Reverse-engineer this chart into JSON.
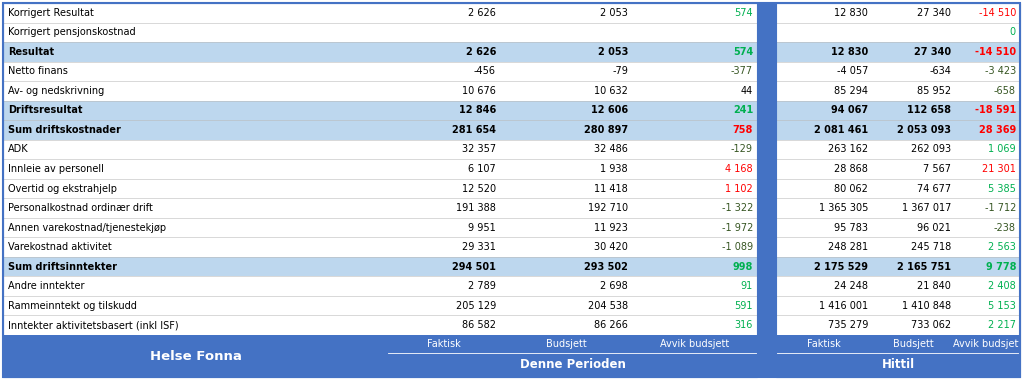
{
  "title_left": "Helse Fonna",
  "title_denne": "Denne Perioden",
  "title_hittil": "Hittil",
  "rows": [
    {
      "label": "Inntekter aktivitetsbasert (inkl ISF)",
      "bold": false,
      "highlight": false,
      "dp_f": "86 582",
      "dp_b": "86 266",
      "dp_a": "316",
      "dp_a_color": "green",
      "h_f": "735 279",
      "h_b": "733 062",
      "h_a": "2 217",
      "h_a_color": "green"
    },
    {
      "label": "Rammeinntekt og tilskudd",
      "bold": false,
      "highlight": false,
      "dp_f": "205 129",
      "dp_b": "204 538",
      "dp_a": "591",
      "dp_a_color": "green",
      "h_f": "1 416 001",
      "h_b": "1 410 848",
      "h_a": "5 153",
      "h_a_color": "green"
    },
    {
      "label": "Andre inntekter",
      "bold": false,
      "highlight": false,
      "dp_f": "2 789",
      "dp_b": "2 698",
      "dp_a": "91",
      "dp_a_color": "green",
      "h_f": "24 248",
      "h_b": "21 840",
      "h_a": "2 408",
      "h_a_color": "green"
    },
    {
      "label": "Sum driftsinntekter",
      "bold": true,
      "highlight": true,
      "dp_f": "294 501",
      "dp_b": "293 502",
      "dp_a": "998",
      "dp_a_color": "green",
      "h_f": "2 175 529",
      "h_b": "2 165 751",
      "h_a": "9 778",
      "h_a_color": "green"
    },
    {
      "label": "Varekostnad aktivitet",
      "bold": false,
      "highlight": false,
      "dp_f": "29 331",
      "dp_b": "30 420",
      "dp_a": "-1 089",
      "dp_a_color": "darkgreen",
      "h_f": "248 281",
      "h_b": "245 718",
      "h_a": "2 563",
      "h_a_color": "green"
    },
    {
      "label": "Annen varekostnad/tjenestekjøp",
      "bold": false,
      "highlight": false,
      "dp_f": "9 951",
      "dp_b": "11 923",
      "dp_a": "-1 972",
      "dp_a_color": "darkgreen",
      "h_f": "95 783",
      "h_b": "96 021",
      "h_a": "-238",
      "h_a_color": "darkgreen"
    },
    {
      "label": "Personalkostnad ordinær drift",
      "bold": false,
      "highlight": false,
      "dp_f": "191 388",
      "dp_b": "192 710",
      "dp_a": "-1 322",
      "dp_a_color": "darkgreen",
      "h_f": "1 365 305",
      "h_b": "1 367 017",
      "h_a": "-1 712",
      "h_a_color": "darkgreen"
    },
    {
      "label": "Overtid og ekstrahjelp",
      "bold": false,
      "highlight": false,
      "dp_f": "12 520",
      "dp_b": "11 418",
      "dp_a": "1 102",
      "dp_a_color": "red",
      "h_f": "80 062",
      "h_b": "74 677",
      "h_a": "5 385",
      "h_a_color": "green"
    },
    {
      "label": "Innleie av personell",
      "bold": false,
      "highlight": false,
      "dp_f": "6 107",
      "dp_b": "1 938",
      "dp_a": "4 168",
      "dp_a_color": "red",
      "h_f": "28 868",
      "h_b": "7 567",
      "h_a": "21 301",
      "h_a_color": "red"
    },
    {
      "label": "ADK",
      "bold": false,
      "highlight": false,
      "dp_f": "32 357",
      "dp_b": "32 486",
      "dp_a": "-129",
      "dp_a_color": "darkgreen",
      "h_f": "263 162",
      "h_b": "262 093",
      "h_a": "1 069",
      "h_a_color": "green"
    },
    {
      "label": "Sum driftskostnader",
      "bold": true,
      "highlight": true,
      "dp_f": "281 654",
      "dp_b": "280 897",
      "dp_a": "758",
      "dp_a_color": "red",
      "h_f": "2 081 461",
      "h_b": "2 053 093",
      "h_a": "28 369",
      "h_a_color": "red"
    },
    {
      "label": "Driftsresultat",
      "bold": true,
      "highlight": true,
      "dp_f": "12 846",
      "dp_b": "12 606",
      "dp_a": "241",
      "dp_a_color": "green",
      "h_f": "94 067",
      "h_b": "112 658",
      "h_a": "-18 591",
      "h_a_color": "red"
    },
    {
      "label": "Av- og nedskrivning",
      "bold": false,
      "highlight": false,
      "dp_f": "10 676",
      "dp_b": "10 632",
      "dp_a": "44",
      "dp_a_color": "black",
      "h_f": "85 294",
      "h_b": "85 952",
      "h_a": "-658",
      "h_a_color": "darkgreen"
    },
    {
      "label": "Netto finans",
      "bold": false,
      "highlight": false,
      "dp_f": "-456",
      "dp_b": "-79",
      "dp_a": "-377",
      "dp_a_color": "darkgreen",
      "h_f": "-4 057",
      "h_b": "-634",
      "h_a": "-3 423",
      "h_a_color": "darkgreen"
    },
    {
      "label": "Resultat",
      "bold": true,
      "highlight": true,
      "dp_f": "2 626",
      "dp_b": "2 053",
      "dp_a": "574",
      "dp_a_color": "green",
      "h_f": "12 830",
      "h_b": "27 340",
      "h_a": "-14 510",
      "h_a_color": "red"
    },
    {
      "label": "Korrigert pensjonskostnad",
      "bold": false,
      "highlight": false,
      "dp_f": "",
      "dp_b": "",
      "dp_a": "",
      "dp_a_color": "black",
      "h_f": "",
      "h_b": "",
      "h_a": "0",
      "h_a_color": "green"
    },
    {
      "label": "Korrigert Resultat",
      "bold": false,
      "highlight": false,
      "dp_f": "2 626",
      "dp_b": "2 053",
      "dp_a": "574",
      "dp_a_color": "green",
      "h_f": "12 830",
      "h_b": "27 340",
      "h_a": "-14 510",
      "h_a_color": "red"
    }
  ],
  "header_bg": "#4472C4",
  "header_text": "#FFFFFF",
  "highlight_bg": "#BDD7EE",
  "border_color": "#4472C4",
  "green_color": "#00B050",
  "red_color": "#FF0000",
  "dark_green_color": "#375623",
  "figwidth": 10.23,
  "figheight": 3.8,
  "dpi": 100
}
